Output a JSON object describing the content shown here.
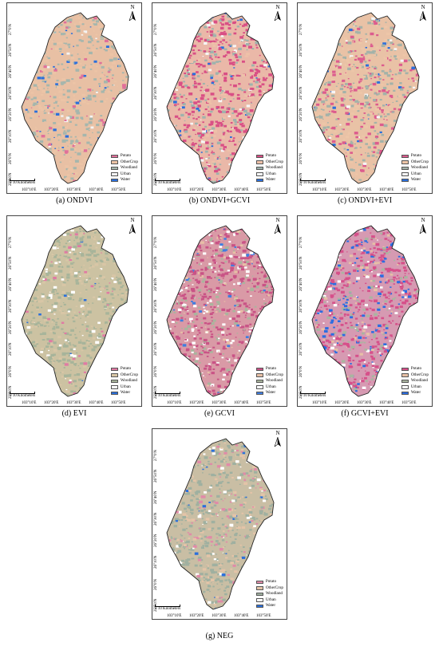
{
  "panels": [
    {
      "caption": "(a) ONDVI",
      "base": "#e8c0a4",
      "colors": {
        "potato": "#e0709a",
        "other": "#ecc4a6",
        "wood": "#a5b6ad",
        "urban": "#f4f4f4",
        "water": "#2a6fdc"
      },
      "mix": {
        "potato": 0.06,
        "wood": 0.35,
        "urban": 0.02,
        "water": 0.04
      },
      "legend": [
        "Potato",
        "OtherCrop",
        "Woodland",
        "Urban",
        "Water"
      ]
    },
    {
      "caption": "(b) ONDVI+GCVI",
      "base": "#eab8a8",
      "colors": {
        "potato": "#d94f85",
        "other": "#eec1a9",
        "wood": "#9fb3ad",
        "urban": "#f6f6f6",
        "water": "#2a6fdc"
      },
      "mix": {
        "potato": 0.45,
        "wood": 0.22,
        "urban": 0.06,
        "water": 0.04
      },
      "legend": [
        "Potato",
        "OtherCrop",
        "Woodland",
        "Urban",
        "Water"
      ]
    },
    {
      "caption": "(c) ONDVI+EVI",
      "base": "#e9c2a6",
      "colors": {
        "potato": "#dc5c8e",
        "other": "#edc6a8",
        "wood": "#a3b2a9",
        "urban": "#f6f6f6",
        "water": "#2a6fdc"
      },
      "mix": {
        "potato": 0.22,
        "wood": 0.28,
        "urban": 0.03,
        "water": 0.03
      },
      "legend": [
        "Potato",
        "OtherCrop",
        "Woodland",
        "Urban",
        "Water"
      ]
    },
    {
      "caption": "(d) EVI",
      "base": "#ccc2a2",
      "colors": {
        "potato": "#e07aa4",
        "other": "#d8c6a6",
        "wood": "#a7b49a",
        "urban": "#ffffff",
        "water": "#2a6fdc"
      },
      "mix": {
        "potato": 0.04,
        "wood": 0.5,
        "urban": 0.08,
        "water": 0.02
      },
      "legend": [
        "Potato",
        "OtherCrop",
        "Woodland",
        "Urban",
        "Water"
      ]
    },
    {
      "caption": "(e) GCVI",
      "base": "#d99aa6",
      "colors": {
        "potato": "#c95386",
        "other": "#e7c0a6",
        "wood": "#a9b59d",
        "urban": "#ffffff",
        "water": "#3f7de0"
      },
      "mix": {
        "potato": 0.5,
        "wood": 0.18,
        "urban": 0.14,
        "water": 0.05
      },
      "legend": [
        "Potato",
        "OtherCrop",
        "Woodland",
        "Urban",
        "Water"
      ]
    },
    {
      "caption": "(f) GCVI+EVI",
      "base": "#d69ab2",
      "colors": {
        "potato": "#d6508a",
        "other": "#e7c0a6",
        "wood": "#a9b5a0",
        "urban": "#ffffff",
        "water": "#2b6de2"
      },
      "mix": {
        "potato": 0.45,
        "wood": 0.15,
        "urban": 0.08,
        "water": 0.16
      },
      "legend": [
        "Potato",
        "OtherCrop",
        "Woodland",
        "Urban",
        "Water"
      ]
    },
    {
      "caption": "(g) NEG",
      "base": "#c9bea4",
      "colors": {
        "potato": "#e18aa8",
        "other": "#e4c4a8",
        "wood": "#9fb0a0",
        "urban": "#ffffff",
        "water": "#2a6fdc"
      },
      "mix": {
        "potato": 0.12,
        "wood": 0.45,
        "urban": 0.07,
        "water": 0.02
      },
      "legend": [
        "Potato",
        "OtherCrop",
        "Woodland",
        "Urban",
        "Water"
      ]
    }
  ],
  "axes": {
    "lat_labels": [
      "27°0'N",
      "26°50'N",
      "26°40'N",
      "26°30'N",
      "26°20'N",
      "26°10'N",
      "26°0'N",
      "25°50'N"
    ],
    "lon_labels": [
      "103°10'E",
      "103°20'E",
      "103°30'E",
      "103°40'E",
      "103°50'E"
    ]
  },
  "north_label": "N",
  "scale_label": "10 Kilometers",
  "scale_zero": "0"
}
